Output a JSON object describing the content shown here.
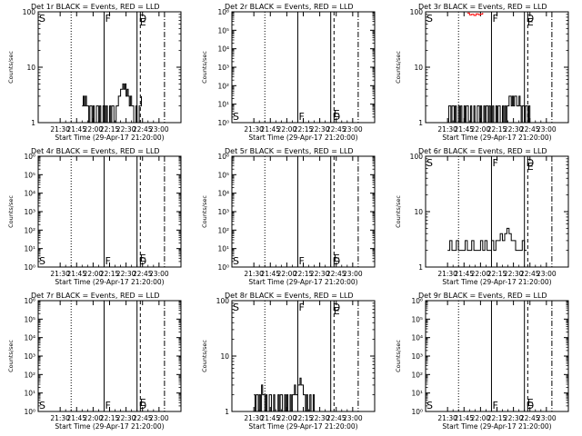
{
  "chart_data": [
    {
      "type": "line",
      "title": "Det 1r BLACK = Events, RED = LLD",
      "xlabel": "Start Time (29-Apr-17 21:20:00)",
      "ylabel": "Counts/sec",
      "yscale": "log",
      "ylim": [
        1,
        100
      ],
      "yticks": [
        "100",
        "10",
        "1"
      ],
      "xticks": [
        "21:30",
        "21:45",
        "22:00",
        "22:15",
        "22:30",
        "22:45",
        "23:00"
      ],
      "xlim": [
        -20,
        110
      ],
      "markers": {
        "dotted": 10,
        "solid_F": 40,
        "solid": 70,
        "dashed": 73,
        "dashdot": 95
      },
      "marker_labels": {
        "S": "S",
        "F": "F",
        "D": "D",
        "E": "E"
      },
      "marker_label_pos": "top",
      "series": [
        {
          "color": "#000000",
          "x": [
            20,
            21,
            22,
            23,
            24,
            25,
            26,
            27,
            28,
            29,
            30,
            31,
            32,
            33,
            34,
            35,
            36,
            37,
            38,
            39,
            40,
            41,
            42,
            43,
            44,
            45,
            46,
            47,
            48,
            49,
            50,
            51,
            52,
            53,
            54,
            55,
            56,
            57,
            58,
            59,
            60,
            61,
            62,
            63,
            64,
            65,
            66,
            67,
            68,
            69,
            70,
            71,
            72,
            73,
            74
          ],
          "y": [
            2,
            3,
            2,
            3,
            2,
            2,
            1,
            2,
            2,
            1,
            2,
            1,
            1,
            2,
            2,
            1,
            2,
            1,
            1,
            2,
            2,
            1,
            2,
            1,
            1,
            2,
            1,
            2,
            2,
            1,
            1,
            2,
            2,
            3,
            3,
            4,
            4,
            5,
            4,
            5,
            3,
            4,
            3,
            2,
            3,
            2,
            2,
            1,
            1,
            2,
            1,
            1,
            2,
            2,
            3
          ]
        }
      ]
    },
    {
      "type": "line",
      "title": "Det 2r BLACK = Events, RED = LLD",
      "xlabel": "Start Time (29-Apr-17 21:20:00)",
      "ylabel": "Counts/sec",
      "yscale": "log",
      "ylim": [
        1,
        1000000
      ],
      "yticks": [
        "10⁶",
        "10⁵",
        "10⁴",
        "10³",
        "10²",
        "10¹",
        "10⁰"
      ],
      "xticks": [
        "21:30",
        "21:45",
        "22:00",
        "22:15",
        "22:30",
        "22:45",
        "23:00"
      ],
      "xlim": [
        -20,
        110
      ],
      "markers": {
        "dotted": 10,
        "solid_F": 40,
        "solid": 70,
        "dashed": 73,
        "dashdot": 95
      },
      "marker_labels": {
        "S": "S",
        "F": "F",
        "D": "D",
        "E": "E"
      },
      "marker_label_pos": "bottom",
      "series": []
    },
    {
      "type": "line",
      "title": "Det 3r BLACK = Events, RED = LLD",
      "xlabel": "Start Time (29-Apr-17 21:20:00)",
      "ylabel": "Counts/sec",
      "yscale": "log",
      "ylim": [
        1,
        100
      ],
      "yticks": [
        "100",
        "10",
        "1"
      ],
      "xticks": [
        "21:30",
        "21:45",
        "22:00",
        "22:15",
        "22:30",
        "22:45",
        "23:00"
      ],
      "xlim": [
        -20,
        110
      ],
      "markers": {
        "dotted": 10,
        "solid_F": 40,
        "solid": 70,
        "dashed": 73,
        "dashdot": 95
      },
      "marker_labels": {
        "S": "S",
        "F": "F",
        "D": "D",
        "E": "E"
      },
      "marker_label_pos": "top",
      "series": [
        {
          "color": "#000000",
          "x": [
            0,
            1,
            2,
            3,
            4,
            5,
            6,
            7,
            8,
            9,
            10,
            11,
            12,
            13,
            14,
            15,
            16,
            17,
            18,
            19,
            20,
            21,
            22,
            23,
            24,
            25,
            26,
            27,
            28,
            29,
            30,
            31,
            32,
            33,
            34,
            35,
            36,
            37,
            38,
            39,
            40,
            41,
            42,
            43,
            44,
            45,
            46,
            47,
            48,
            49,
            50,
            51,
            52,
            53,
            54,
            55,
            56,
            57,
            58,
            59,
            60,
            61,
            62,
            63,
            64,
            65,
            66,
            67,
            68,
            69,
            70,
            71,
            72,
            73,
            74,
            75
          ],
          "y": [
            1,
            2,
            2,
            1,
            2,
            2,
            1,
            2,
            1,
            1,
            2,
            1,
            2,
            1,
            1,
            2,
            1,
            2,
            2,
            1,
            1,
            2,
            1,
            1,
            2,
            1,
            1,
            2,
            2,
            1,
            2,
            1,
            1,
            2,
            1,
            2,
            2,
            1,
            2,
            1,
            1,
            2,
            1,
            1,
            2,
            1,
            2,
            2,
            1,
            1,
            2,
            1,
            2,
            1,
            2,
            2,
            3,
            3,
            2,
            3,
            2,
            3,
            3,
            2,
            2,
            3,
            2,
            1,
            2,
            2,
            1,
            2,
            2,
            1,
            2,
            1
          ]
        },
        {
          "color": "#ff0000",
          "x": [
            18,
            20,
            22,
            24,
            26,
            28,
            30,
            32
          ],
          "y": [
            95,
            88,
            90,
            86,
            92,
            89,
            91,
            96
          ]
        }
      ]
    },
    {
      "type": "line",
      "title": "Det 4r BLACK = Events, RED = LLD",
      "xlabel": "Start Time (29-Apr-17 21:20:00)",
      "ylabel": "Counts/sec",
      "yscale": "log",
      "ylim": [
        1,
        1000000
      ],
      "yticks": [
        "10⁶",
        "10⁵",
        "10⁴",
        "10³",
        "10²",
        "10¹",
        "10⁰"
      ],
      "xticks": [
        "21:30",
        "21:45",
        "22:00",
        "22:15",
        "22:30",
        "22:45",
        "23:00"
      ],
      "xlim": [
        -20,
        110
      ],
      "markers": {
        "dotted": 10,
        "solid_F": 40,
        "solid": 70,
        "dashed": 73,
        "dashdot": 95
      },
      "marker_labels": {
        "S": "S",
        "F": "F",
        "D": "D",
        "E": "E"
      },
      "marker_label_pos": "bottom",
      "series": []
    },
    {
      "type": "line",
      "title": "Det 5r BLACK = Events, RED = LLD",
      "xlabel": "Start Time (29-Apr-17 21:20:00)",
      "ylabel": "Counts/sec",
      "yscale": "log",
      "ylim": [
        1,
        1000000
      ],
      "yticks": [
        "10⁶",
        "10⁵",
        "10⁴",
        "10³",
        "10²",
        "10¹",
        "10⁰"
      ],
      "xticks": [
        "21:30",
        "21:45",
        "22:00",
        "22:15",
        "22:30",
        "22:45",
        "23:00"
      ],
      "xlim": [
        -20,
        110
      ],
      "markers": {
        "dotted": 10,
        "solid_F": 40,
        "solid": 70,
        "dashed": 73,
        "dashdot": 95
      },
      "marker_labels": {
        "S": "S",
        "F": "F",
        "D": "D",
        "E": "E"
      },
      "marker_label_pos": "bottom",
      "series": []
    },
    {
      "type": "line",
      "title": "Det 6r BLACK = Events, RED = LLD",
      "xlabel": "Start Time (29-Apr-17 21:20:00)",
      "ylabel": "Counts/sec",
      "yscale": "log",
      "ylim": [
        1,
        100
      ],
      "yticks": [
        "100",
        "10",
        "1"
      ],
      "xticks": [
        "21:30",
        "21:45",
        "22:00",
        "22:15",
        "22:30",
        "22:45",
        "23:00"
      ],
      "xlim": [
        -20,
        110
      ],
      "markers": {
        "dotted": 10,
        "solid_F": 40,
        "solid": 70,
        "dashed": 73,
        "dashdot": 95
      },
      "marker_labels": {
        "S": "S",
        "F": "F",
        "D": "D",
        "E": "E"
      },
      "marker_label_pos": "top",
      "series": [
        {
          "color": "#000000",
          "x": [
            0,
            2,
            4,
            6,
            8,
            10,
            12,
            14,
            16,
            18,
            20,
            22,
            24,
            26,
            28,
            30,
            32,
            34,
            36,
            38,
            40,
            42,
            44,
            46,
            48,
            50,
            52,
            54,
            56,
            58,
            60,
            62,
            64,
            66,
            68,
            70,
            72
          ],
          "y": [
            2,
            3,
            2,
            2,
            3,
            2,
            2,
            2,
            3,
            2,
            2,
            3,
            2,
            2,
            2,
            3,
            2,
            3,
            2,
            2,
            3,
            2,
            3,
            3,
            4,
            3,
            4,
            5,
            4,
            3,
            3,
            2,
            2,
            2,
            3,
            2,
            2
          ]
        }
      ]
    },
    {
      "type": "line",
      "title": "Det 7r BLACK = Events, RED = LLD",
      "xlabel": "Start Time (29-Apr-17 21:20:00)",
      "ylabel": "Counts/sec",
      "yscale": "log",
      "ylim": [
        1,
        1000000
      ],
      "yticks": [
        "10⁶",
        "10⁵",
        "10⁴",
        "10³",
        "10²",
        "10¹",
        "10⁰"
      ],
      "xticks": [
        "21:30",
        "21:45",
        "22:00",
        "22:15",
        "22:30",
        "22:45",
        "23:00"
      ],
      "xlim": [
        -20,
        110
      ],
      "markers": {
        "dotted": 10,
        "solid_F": 40,
        "solid": 70,
        "dashed": 73,
        "dashdot": 95
      },
      "marker_labels": {
        "S": "S",
        "F": "F",
        "D": "D",
        "E": "E"
      },
      "marker_label_pos": "bottom",
      "series": []
    },
    {
      "type": "line",
      "title": "Det 8r BLACK = Events, RED = LLD",
      "xlabel": "Start Time (29-Apr-17 21:20:00)",
      "ylabel": "Counts/sec",
      "yscale": "log",
      "ylim": [
        1,
        100
      ],
      "yticks": [
        "100",
        "10",
        "1"
      ],
      "xticks": [
        "21:30",
        "21:45",
        "22:00",
        "22:15",
        "22:30",
        "22:45",
        "23:00"
      ],
      "xlim": [
        -20,
        110
      ],
      "markers": {
        "dotted": 10,
        "solid_F": 40,
        "solid": 70,
        "dashed": 73,
        "dashdot": 95
      },
      "marker_labels": {
        "S": "S",
        "F": "F",
        "D": "D",
        "E": "E"
      },
      "marker_label_pos": "top",
      "series": [
        {
          "color": "#000000",
          "x": [
            0,
            1,
            2,
            3,
            4,
            5,
            6,
            7,
            8,
            9,
            10,
            11,
            12,
            13,
            14,
            15,
            16,
            17,
            18,
            19,
            20,
            21,
            22,
            23,
            24,
            25,
            26,
            27,
            28,
            29,
            30,
            31,
            32,
            33,
            34,
            35,
            36,
            37,
            38,
            39,
            40,
            41,
            42,
            43,
            44,
            45,
            46,
            47,
            48,
            49,
            50,
            51,
            52,
            53,
            54,
            55,
            56
          ],
          "y": [
            2,
            1,
            2,
            2,
            1,
            2,
            1,
            3,
            2,
            2,
            1,
            2,
            1,
            1,
            2,
            2,
            1,
            1,
            2,
            1,
            1,
            1,
            2,
            1,
            2,
            2,
            1,
            1,
            2,
            1,
            2,
            1,
            1,
            2,
            1,
            2,
            2,
            3,
            2,
            2,
            3,
            3,
            4,
            3,
            3,
            2,
            2,
            1,
            2,
            1,
            1,
            2,
            1,
            1,
            2,
            1,
            1
          ]
        }
      ]
    },
    {
      "type": "line",
      "title": "Det 9r BLACK = Events, RED = LLD",
      "xlabel": "Start Time (29-Apr-17 21:20:00)",
      "ylabel": "Counts/sec",
      "yscale": "log",
      "ylim": [
        1,
        1000000
      ],
      "yticks": [
        "10⁶",
        "10⁵",
        "10⁴",
        "10³",
        "10²",
        "10¹",
        "10⁰"
      ],
      "xticks": [
        "21:30",
        "21:45",
        "22:00",
        "22:15",
        "22:30",
        "22:45",
        "23:00"
      ],
      "xlim": [
        -20,
        110
      ],
      "markers": {
        "dotted": 10,
        "solid_F": 40,
        "solid": 70,
        "dashed": 73,
        "dashdot": 95
      },
      "marker_labels": {
        "S": "S",
        "F": "F",
        "D": "D",
        "E": "E"
      },
      "marker_label_pos": "bottom",
      "series": []
    }
  ]
}
